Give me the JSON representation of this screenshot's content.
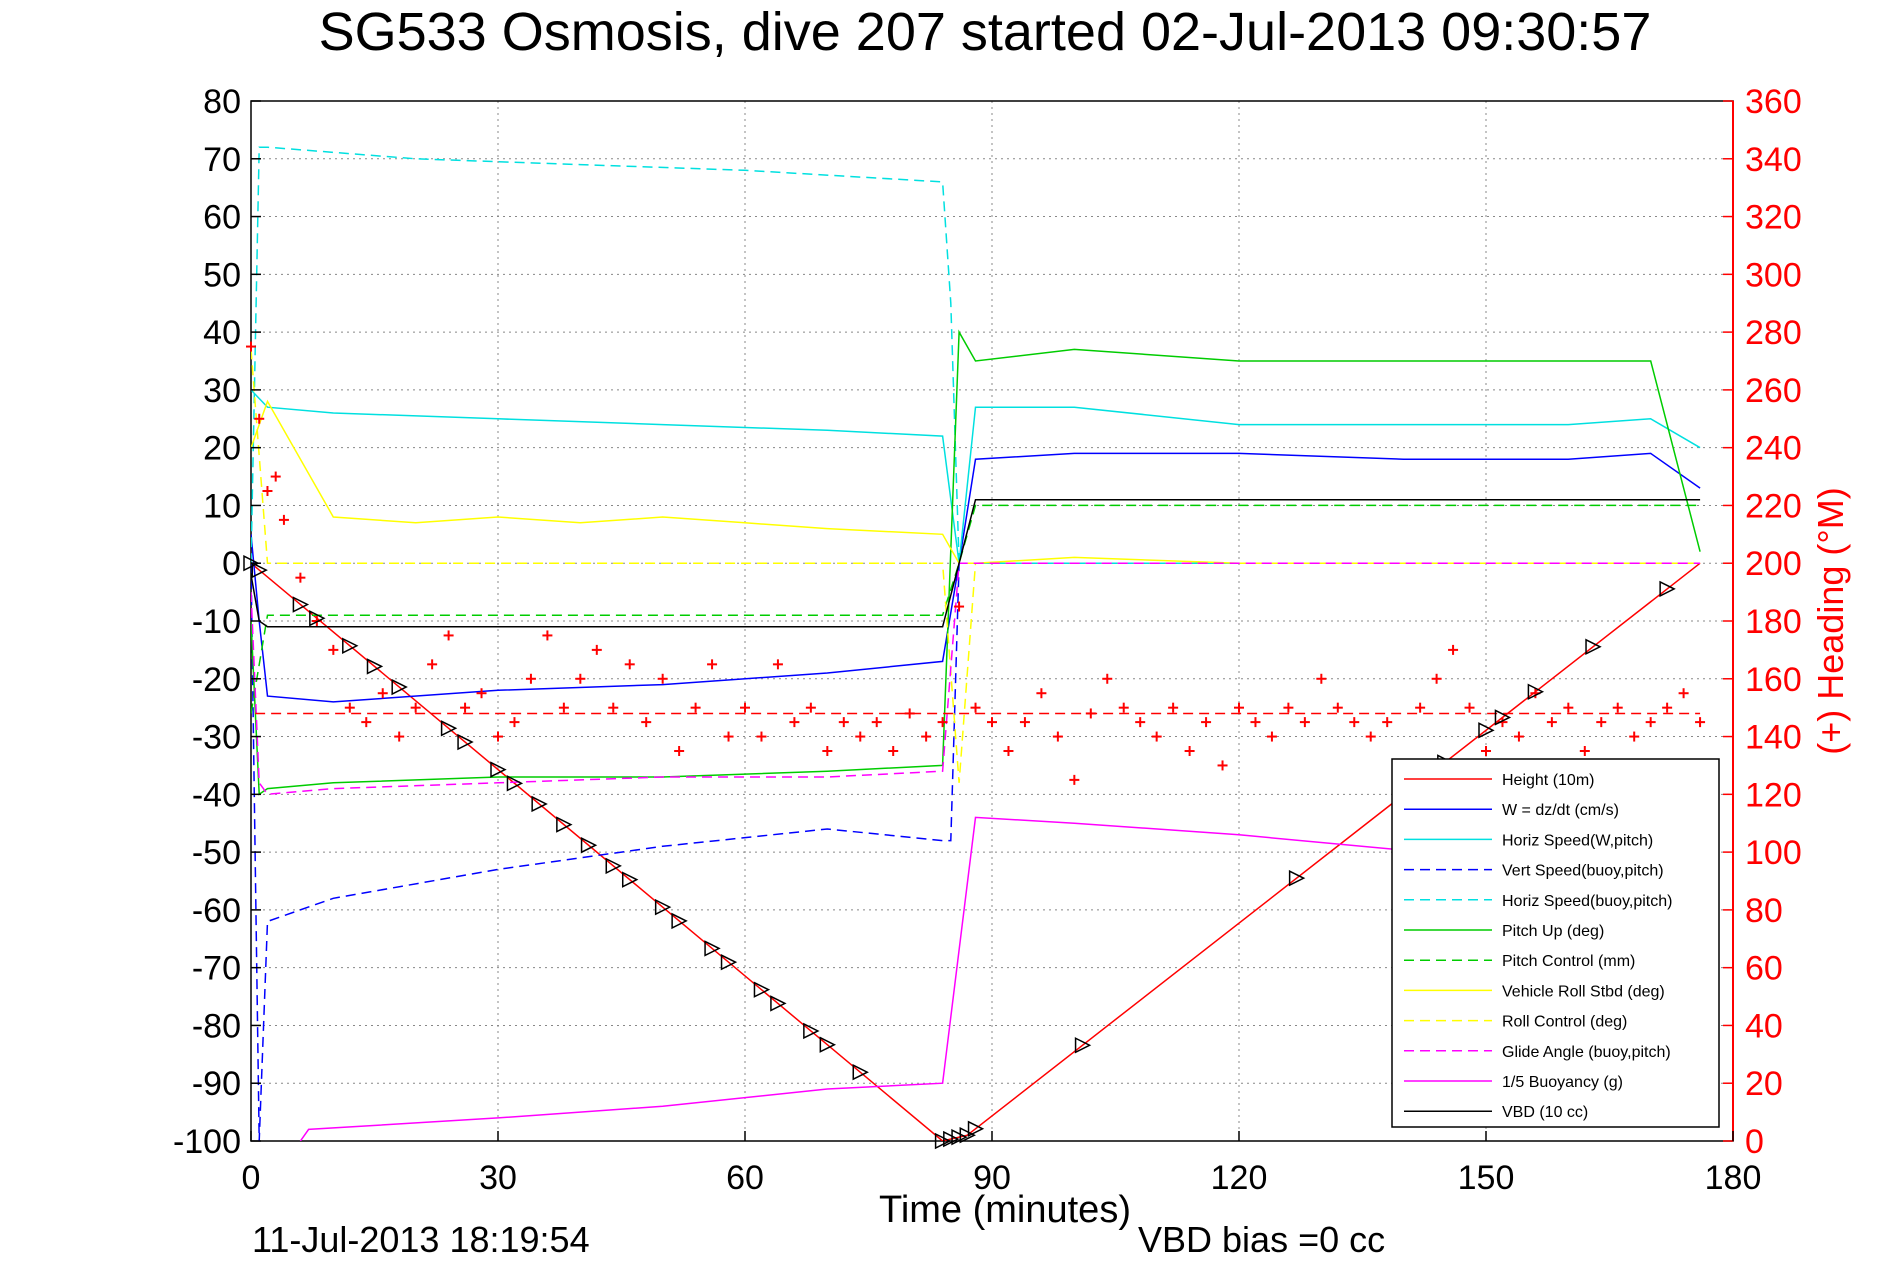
{
  "chart_data": {
    "type": "line",
    "title": "SG533 Osmosis, dive 207 started 02-Jul-2013 09:30:57",
    "xlabel": "Time (minutes)",
    "ylabel": "",
    "ylabel_right": "(+) Heading (°M)",
    "xlim": [
      0,
      180
    ],
    "ylim": [
      -100,
      80
    ],
    "ylim_right": [
      0,
      360
    ],
    "x_ticks": [
      "0",
      "30",
      "60",
      "90",
      "120",
      "150",
      "180"
    ],
    "y_ticks": [
      "80",
      "70",
      "60",
      "50",
      "40",
      "30",
      "20",
      "10",
      "0",
      "-10",
      "-20",
      "-30",
      "-40",
      "-50",
      "-60",
      "-70",
      "-80",
      "-90",
      "-100"
    ],
    "y_ticks_right": [
      "360",
      "340",
      "320",
      "300",
      "280",
      "260",
      "240",
      "220",
      "200",
      "180",
      "160",
      "140",
      "120",
      "100",
      "80",
      "60",
      "40",
      "20",
      "0"
    ],
    "grid": true,
    "legend_position": "bottom-right",
    "footer_left": "11-Jul-2013 18:19:54",
    "footer_right": "VBD bias =0 cc",
    "series": [
      {
        "name": "Height (10m)",
        "color": "#ff0000",
        "style": "solid",
        "x": [
          0,
          84,
          87,
          176
        ],
        "y": [
          0,
          -100,
          -99,
          0
        ]
      },
      {
        "name": "W = dz/dt (cm/s)",
        "color": "#0000ff",
        "style": "solid",
        "x": [
          0,
          1,
          2,
          10,
          30,
          50,
          70,
          84,
          86,
          88,
          100,
          120,
          140,
          160,
          170,
          176
        ],
        "y": [
          5,
          -10,
          -23,
          -24,
          -22,
          -21,
          -19,
          -17,
          0,
          18,
          19,
          19,
          18,
          18,
          19,
          13
        ]
      },
      {
        "name": "Horiz Speed(W,pitch)",
        "color": "#00e0e0",
        "style": "solid",
        "x": [
          0,
          2,
          10,
          30,
          50,
          70,
          84,
          86,
          88,
          100,
          120,
          140,
          160,
          170,
          176
        ],
        "y": [
          30,
          27,
          26,
          25,
          24,
          23,
          22,
          0,
          27,
          27,
          24,
          24,
          24,
          25,
          20
        ]
      },
      {
        "name": "Vert Speed(buoy,pitch)",
        "color": "#0000ff",
        "style": "dashed",
        "x": [
          0,
          1,
          2,
          10,
          30,
          50,
          70,
          84,
          85,
          86,
          176
        ],
        "y": [
          0,
          -100,
          -62,
          -58,
          -53,
          -49,
          -46,
          -48,
          -48,
          0,
          0
        ]
      },
      {
        "name": "Horiz Speed(buoy,pitch)",
        "color": "#00e0e0",
        "style": "dashed",
        "x": [
          0,
          1,
          2,
          20,
          40,
          60,
          84,
          85,
          86,
          176
        ],
        "y": [
          0,
          72,
          72,
          70,
          69,
          68,
          66,
          45,
          0,
          0
        ]
      },
      {
        "name": "Pitch Up (deg)",
        "color": "#00cc00",
        "style": "solid",
        "x": [
          0,
          1,
          2,
          10,
          30,
          50,
          70,
          84,
          86,
          88,
          100,
          120,
          140,
          160,
          170,
          176
        ],
        "y": [
          -10,
          -40,
          -39,
          -38,
          -37,
          -37,
          -36,
          -35,
          40,
          35,
          37,
          35,
          35,
          35,
          35,
          2
        ]
      },
      {
        "name": "Pitch Control (mm)",
        "color": "#00cc00",
        "style": "dashed",
        "x": [
          0,
          2,
          84,
          86,
          88,
          176
        ],
        "y": [
          -26,
          -9,
          -9,
          0,
          10,
          10
        ]
      },
      {
        "name": "Vehicle Roll Stbd (deg)",
        "color": "#ffff00",
        "style": "solid",
        "x": [
          0,
          2,
          10,
          20,
          30,
          40,
          50,
          60,
          70,
          84,
          86,
          88,
          100,
          120,
          140,
          160,
          176
        ],
        "y": [
          20,
          28,
          8,
          7,
          8,
          7,
          8,
          7,
          6,
          5,
          0,
          0,
          1,
          0,
          0,
          0,
          0
        ]
      },
      {
        "name": "Roll Control (deg)",
        "color": "#ffff00",
        "style": "dashed",
        "x": [
          0,
          2,
          84,
          86,
          88,
          176
        ],
        "y": [
          37,
          0,
          0,
          -38,
          0,
          0
        ]
      },
      {
        "name": "Glide Angle (buoy,pitch)",
        "color": "#ff00ff",
        "style": "dashed",
        "x": [
          0,
          1,
          2,
          10,
          30,
          50,
          70,
          84,
          86,
          176
        ],
        "y": [
          -5,
          -38,
          -40,
          -39,
          -38,
          -37,
          -37,
          -36,
          0,
          0
        ]
      },
      {
        "name": "1/5 Buoyancy (g)",
        "color": "#ff00ff",
        "style": "solid",
        "x": [
          6,
          7,
          30,
          50,
          70,
          84,
          88,
          100,
          120,
          150,
          176
        ],
        "y": [
          -100,
          -98,
          -96,
          -94,
          -91,
          -90,
          -44,
          -45,
          -47,
          -51,
          -54
        ]
      },
      {
        "name": "VBD (10 cc)",
        "color": "#000000",
        "style": "solid",
        "x": [
          0,
          1,
          2,
          10,
          40,
          84,
          86,
          88,
          176
        ],
        "y": [
          -2,
          -10,
          -11,
          -11,
          -11,
          -11,
          0,
          11,
          11
        ]
      }
    ],
    "heading": {
      "color": "#ff0000",
      "marker": "+",
      "axis": "right",
      "x": [
        0,
        1,
        2,
        3,
        4,
        6,
        8,
        10,
        12,
        14,
        16,
        18,
        20,
        22,
        24,
        26,
        28,
        30,
        32,
        34,
        36,
        38,
        40,
        42,
        44,
        46,
        48,
        50,
        52,
        54,
        56,
        58,
        60,
        62,
        64,
        66,
        68,
        70,
        72,
        74,
        76,
        78,
        80,
        82,
        84,
        86,
        88,
        90,
        92,
        94,
        96,
        98,
        100,
        102,
        104,
        106,
        108,
        110,
        112,
        114,
        116,
        118,
        120,
        122,
        124,
        126,
        128,
        130,
        132,
        134,
        136,
        138,
        140,
        142,
        144,
        146,
        148,
        150,
        152,
        154,
        156,
        158,
        160,
        162,
        164,
        166,
        168,
        170,
        172,
        174,
        176
      ],
      "y": [
        275,
        250,
        225,
        230,
        215,
        195,
        180,
        170,
        150,
        145,
        155,
        140,
        150,
        165,
        175,
        150,
        155,
        140,
        145,
        160,
        175,
        150,
        160,
        170,
        150,
        165,
        145,
        160,
        135,
        150,
        165,
        140,
        150,
        140,
        165,
        145,
        150,
        135,
        145,
        140,
        145,
        135,
        148,
        140,
        145,
        185,
        150,
        145,
        135,
        145,
        155,
        140,
        125,
        148,
        160,
        150,
        145,
        140,
        150,
        135,
        145,
        130,
        150,
        145,
        140,
        150,
        145,
        160,
        150,
        145,
        140,
        145,
        130,
        150,
        160,
        170,
        150,
        135,
        145,
        140,
        155,
        145,
        150,
        135,
        145,
        150,
        140,
        145,
        150,
        155,
        145
      ],
      "mean_line_y": -26
    },
    "markers_triangle_x": [
      0,
      1,
      6,
      8,
      12,
      15,
      18,
      24,
      26,
      30,
      32,
      35,
      38,
      41,
      44,
      46,
      50,
      52,
      56,
      58,
      62,
      64,
      68,
      70,
      74,
      84,
      85,
      86,
      87,
      88,
      101,
      127,
      145,
      150,
      152,
      156,
      163,
      172
    ]
  }
}
